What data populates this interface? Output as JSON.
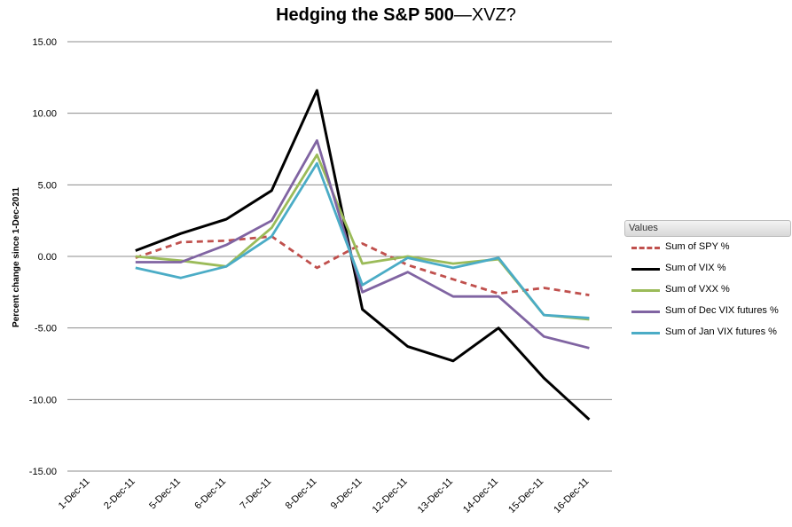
{
  "chart_data": {
    "type": "line",
    "title_bold": "Hedging the S&P 500",
    "title_rest": "—XVZ?",
    "xlabel": "",
    "ylabel": "Percent change since 1-Dec-2011",
    "categories": [
      "1-Dec-11",
      "2-Dec-11",
      "5-Dec-11",
      "6-Dec-11",
      "7-Dec-11",
      "8-Dec-11",
      "9-Dec-11",
      "12-Dec-11",
      "13-Dec-11",
      "14-Dec-11",
      "15-Dec-11",
      "16-Dec-11"
    ],
    "ylim": [
      -15,
      15
    ],
    "yticks": [
      "15.00",
      "10.00",
      "5.00",
      "0.00",
      "-5.00",
      "-10.00",
      "-15.00"
    ],
    "ytick_values": [
      15,
      10,
      5,
      0,
      -5,
      -10,
      -15
    ],
    "grid": true,
    "legend_position": "right",
    "legend_title": "Values",
    "series": [
      {
        "name": "Sum of SPY %",
        "color": "#c0504d",
        "dashed": true,
        "values": [
          null,
          -0.1,
          1.0,
          1.1,
          1.4,
          -0.8,
          0.9,
          -0.6,
          -1.6,
          -2.6,
          -2.2,
          -2.7
        ]
      },
      {
        "name": "Sum of VIX %",
        "color": "#000000",
        "dashed": false,
        "values": [
          null,
          0.4,
          1.6,
          2.6,
          4.6,
          11.6,
          -3.7,
          -6.3,
          -7.3,
          -5.0,
          -8.5,
          -11.4
        ]
      },
      {
        "name": "Sum of VXX %",
        "color": "#9bbb59",
        "dashed": false,
        "values": [
          null,
          0.0,
          -0.3,
          -0.7,
          2.0,
          7.1,
          -0.5,
          0.0,
          -0.5,
          -0.2,
          -4.1,
          -4.4
        ]
      },
      {
        "name": "Sum of Dec VIX futures %",
        "color": "#8064a2",
        "dashed": false,
        "values": [
          null,
          -0.4,
          -0.4,
          0.8,
          2.5,
          8.1,
          -2.5,
          -1.1,
          -2.8,
          -2.8,
          -5.6,
          -6.4
        ]
      },
      {
        "name": "Sum of Jan VIX futures %",
        "color": "#4bacc6",
        "dashed": false,
        "values": [
          null,
          -0.8,
          -1.5,
          -0.7,
          1.4,
          6.5,
          -2.0,
          -0.1,
          -0.8,
          -0.1,
          -4.1,
          -4.3
        ]
      }
    ]
  }
}
